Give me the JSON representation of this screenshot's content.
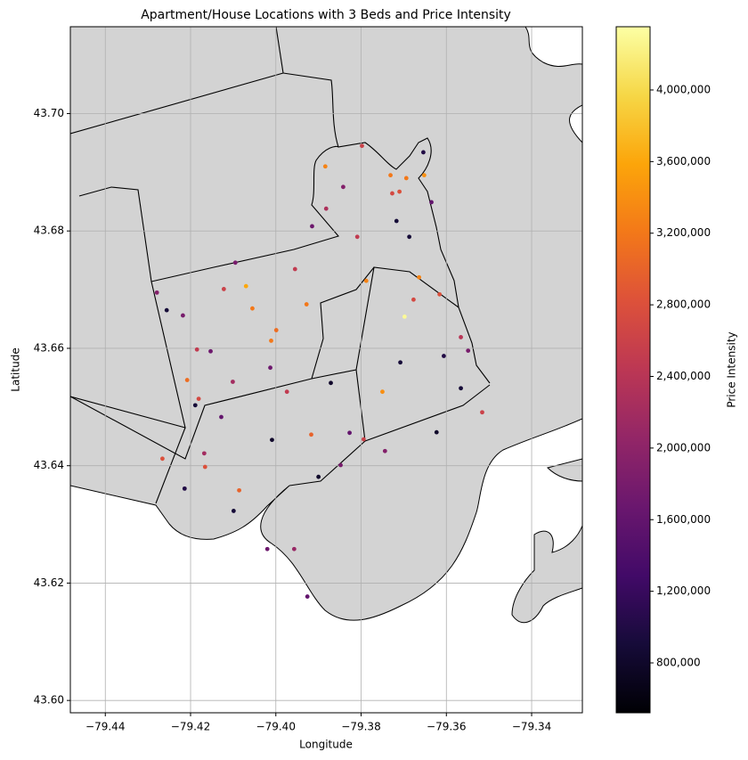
{
  "chart_data": {
    "type": "scatter",
    "title": "Apartment/House Locations with 3 Beds and Price Intensity",
    "x_label": "Longitude",
    "y_label": "Latitude",
    "colorbar_label": "Price Intensity",
    "colormap": "inferno",
    "grid": true,
    "xlim": [
      -79.4482,
      -79.3281
    ],
    "ylim": [
      43.5979,
      43.7148
    ],
    "clim": [
      521400,
      4353200
    ],
    "xticks": [
      {
        "value": -79.44,
        "label": "−79.44"
      },
      {
        "value": -79.42,
        "label": "−79.42"
      },
      {
        "value": -79.4,
        "label": "−79.40"
      },
      {
        "value": -79.38,
        "label": "−79.38"
      },
      {
        "value": -79.36,
        "label": "−79.36"
      },
      {
        "value": -79.34,
        "label": "−79.34"
      }
    ],
    "yticks": [
      {
        "value": 43.6,
        "label": "43.60"
      },
      43.62,
      43.64,
      43.66,
      43.68,
      {
        "value": 43.7,
        "label": "43.70"
      }
    ],
    "cticks": [
      {
        "value": 800000,
        "label": "800,000"
      },
      {
        "value": 1200000,
        "label": "1,200,000"
      },
      {
        "value": 1600000,
        "label": "1,600,000"
      },
      {
        "value": 2000000,
        "label": "2,000,000"
      },
      {
        "value": 2400000,
        "label": "2,400,000"
      },
      {
        "value": 2800000,
        "label": "2,800,000"
      },
      {
        "value": 3200000,
        "label": "3,200,000"
      },
      {
        "value": 3600000,
        "label": "3,600,000"
      },
      {
        "value": 4000000,
        "label": "4,000,000"
      }
    ],
    "x": [
      -79.3798,
      -79.3884,
      -79.3731,
      -79.3652,
      -79.3694,
      -79.3727,
      -79.371,
      -79.3842,
      -79.3882,
      -79.3717,
      -79.3915,
      -79.3809,
      -79.3687,
      -79.4095,
      -79.407,
      -79.4122,
      -79.3955,
      -79.4055,
      -79.3928,
      -79.3999,
      -79.4011,
      -79.3698,
      -79.3677,
      -79.3616,
      -79.375,
      -79.3516,
      -79.4266,
      -79.4086,
      -79.4189,
      -79.4128,
      -79.4009,
      -79.3917,
      -79.39,
      -79.3848,
      -79.4214,
      -79.4168,
      -79.4099,
      -79.402,
      -79.3926,
      -79.3957,
      -79.4256,
      -79.4218,
      -79.4153,
      -79.4185,
      -79.4208,
      -79.4279,
      -79.4101,
      -79.4013,
      -79.3974,
      -79.3871,
      -79.3794,
      -79.3744,
      -79.3623,
      -79.3566,
      -79.3549,
      -79.3606,
      -79.3566,
      -79.3664,
      -79.3708,
      -79.3788,
      -79.4181,
      -79.3654,
      -79.3635,
      -79.3827,
      -79.4166
    ],
    "y": [
      43.6945,
      43.691,
      43.6895,
      43.6895,
      43.689,
      43.6864,
      43.6867,
      43.6875,
      43.6838,
      43.6817,
      43.6808,
      43.679,
      43.679,
      43.6746,
      43.6706,
      43.6701,
      43.6735,
      43.6668,
      43.6675,
      43.6631,
      43.6613,
      43.6654,
      43.6683,
      43.6692,
      43.6526,
      43.6491,
      43.6412,
      43.6358,
      43.6503,
      43.6483,
      43.6444,
      43.6453,
      43.6381,
      43.6401,
      43.6361,
      43.6421,
      43.6323,
      43.6258,
      43.6177,
      43.6258,
      43.6665,
      43.6656,
      43.6595,
      43.6598,
      43.6546,
      43.6695,
      43.6543,
      43.6567,
      43.6526,
      43.6541,
      43.6445,
      43.6425,
      43.6457,
      43.6532,
      43.6596,
      43.6587,
      43.6619,
      43.6721,
      43.6576,
      43.6715,
      43.6514,
      43.6934,
      43.6849,
      43.6456,
      43.6398
    ],
    "values": [
      2600000,
      3300000,
      3200000,
      3400000,
      3200000,
      2700000,
      2800000,
      1900000,
      2300000,
      900000,
      1700000,
      2500000,
      900000,
      1800000,
      3600000,
      2600000,
      2500000,
      3200000,
      3200000,
      3100000,
      3200000,
      4300000,
      2700000,
      2800000,
      3400000,
      2600000,
      2800000,
      3000000,
      900000,
      1600000,
      800000,
      3000000,
      800000,
      1800000,
      1000000,
      2200000,
      900000,
      1700000,
      1600000,
      2100000,
      900000,
      1800000,
      1700000,
      2500000,
      3100000,
      1900000,
      2200000,
      1700000,
      2500000,
      800000,
      2600000,
      1900000,
      800000,
      900000,
      1800000,
      1000000,
      2400000,
      3300000,
      900000,
      3300000,
      2700000,
      1000000,
      1600000,
      1600000,
      2800000
    ]
  }
}
